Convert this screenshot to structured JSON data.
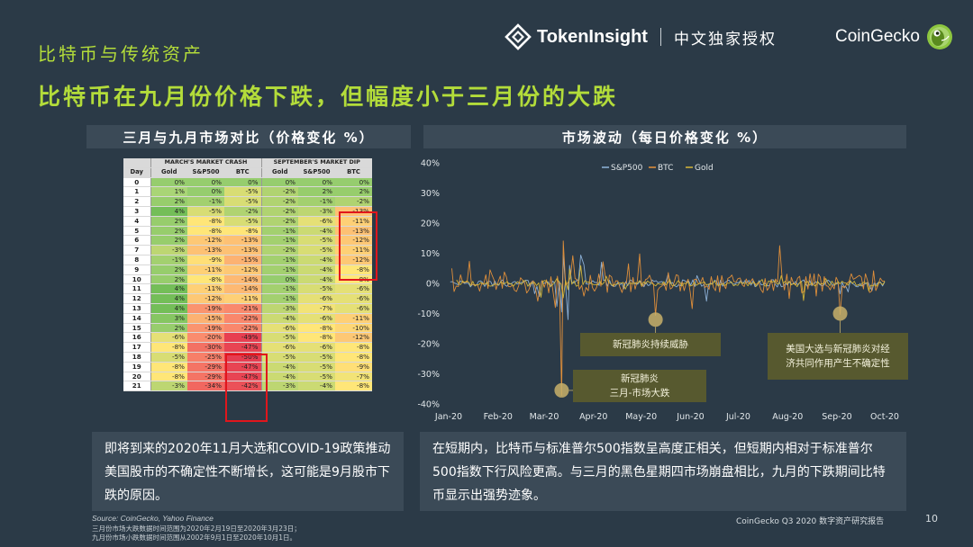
{
  "header": {
    "section_label": "比特币与传统资产",
    "headline": "比特币在九月份价格下跌，但幅度小于三月份的大跌",
    "tokeninsight_name": "TokenInsight",
    "tokeninsight_license": "中文独家授权",
    "coingecko_name": "CoinGecko"
  },
  "left_panel": {
    "title": "三月与九月市场对比（价格变化 %）",
    "group_march": "MARCH'S MARKET CRASH",
    "group_sept": "SEPTEMBER'S MARKET DIP",
    "columns": [
      "Day",
      "Gold",
      "S&P500",
      "BTC",
      "Gold",
      "S&P500",
      "BTC"
    ],
    "rows": [
      [
        "0",
        "0%",
        "0%",
        "0%",
        "0%",
        "0%",
        "0%"
      ],
      [
        "1",
        "1%",
        "0%",
        "-5%",
        "-2%",
        "2%",
        "2%"
      ],
      [
        "2",
        "2%",
        "-1%",
        "-5%",
        "-2%",
        "-1%",
        "-2%"
      ],
      [
        "3",
        "4%",
        "-5%",
        "-2%",
        "-2%",
        "-3%",
        "-13%"
      ],
      [
        "4",
        "2%",
        "-8%",
        "-5%",
        "-2%",
        "-6%",
        "-11%"
      ],
      [
        "5",
        "2%",
        "-8%",
        "-8%",
        "-1%",
        "-4%",
        "-13%"
      ],
      [
        "6",
        "2%",
        "-12%",
        "-13%",
        "-1%",
        "-5%",
        "-12%"
      ],
      [
        "7",
        "-3%",
        "-13%",
        "-13%",
        "-2%",
        "-5%",
        "-11%"
      ],
      [
        "8",
        "-1%",
        "-9%",
        "-15%",
        "-1%",
        "-4%",
        "-12%"
      ],
      [
        "9",
        "2%",
        "-11%",
        "-12%",
        "-1%",
        "-4%",
        "-8%"
      ],
      [
        "10",
        "2%",
        "-8%",
        "-14%",
        "0%",
        "-4%",
        "-8%"
      ],
      [
        "11",
        "4%",
        "-11%",
        "-14%",
        "-1%",
        "-5%",
        "-6%"
      ],
      [
        "12",
        "4%",
        "-12%",
        "-11%",
        "-1%",
        "-6%",
        "-6%"
      ],
      [
        "13",
        "4%",
        "-19%",
        "-21%",
        "-3%",
        "-7%",
        "-6%"
      ],
      [
        "14",
        "3%",
        "-15%",
        "-22%",
        "-4%",
        "-6%",
        "-11%"
      ],
      [
        "15",
        "2%",
        "-19%",
        "-22%",
        "-6%",
        "-8%",
        "-10%"
      ],
      [
        "16",
        "-6%",
        "-20%",
        "-49%",
        "-5%",
        "-8%",
        "-12%"
      ],
      [
        "17",
        "-8%",
        "-30%",
        "-47%",
        "-6%",
        "-6%",
        "-8%"
      ],
      [
        "18",
        "-5%",
        "-25%",
        "-50%",
        "-5%",
        "-5%",
        "-8%"
      ],
      [
        "19",
        "-8%",
        "-29%",
        "-47%",
        "-4%",
        "-5%",
        "-9%"
      ],
      [
        "20",
        "-8%",
        "-29%",
        "-47%",
        "-4%",
        "-5%",
        "-7%"
      ],
      [
        "21",
        "-3%",
        "-34%",
        "-42%",
        "-3%",
        "-4%",
        "-8%"
      ]
    ]
  },
  "right_panel": {
    "title": "市场波动（每日价格变化 %）"
  },
  "annotations": {
    "continuing": "新冠肺炎持续威胁",
    "crash_line1": "新冠肺炎",
    "crash_line2": "三月-市场大跌",
    "election_line1": "美国大选与新冠肺炎对经",
    "election_line2": "济共同作用产生不确定性"
  },
  "notes": {
    "left": "即将到来的2020年11月大选和COVID-19政策推动美国股市的不确定性不断增长，这可能是9月股市下跌的原因。",
    "right": "在短期内，比特币与标准普尔500指数呈高度正相关，但短期内相对于标准普尔500指数下行风险更高。与三月的黑色星期四市场崩盘相比，九月的下跌期间比特币显示出强势迹象。"
  },
  "footer": {
    "source": "Source: CoinGecko, Yahoo Finance",
    "line1": "三月份市场大跌数据时间范围为2020年2月19日至2020年3月23日；",
    "line2": "九月份市场小跌数据时间范围从2002年9月1日至2020年10月1日。",
    "report": "CoinGecko Q3 2020 数字资产研究报告",
    "page": "10"
  },
  "colors": {
    "background": "#2b3a47",
    "accent_green": "#b3dc3a",
    "highlight_red": "#e0161c",
    "annotation_bg": "#57592f",
    "sp500": "#8fb4dc",
    "btc": "#e8923a",
    "gold": "#d8b838"
  },
  "chart_data": {
    "type": "line",
    "legend": [
      "S&P500",
      "BTC",
      "Gold"
    ],
    "legend_position": "top-center",
    "x_ticks": [
      "Jan-20",
      "Feb-20",
      "Mar-20",
      "Apr-20",
      "May-20",
      "Jun-20",
      "Jul-20",
      "Aug-20",
      "Sep-20",
      "Oct-20"
    ],
    "y_ticks": [
      "40%",
      "30%",
      "20%",
      "10%",
      "0%",
      "-10%",
      "-20%",
      "-30%",
      "-40%"
    ],
    "ylim": [
      -40,
      40
    ],
    "grid": false,
    "series": [
      {
        "name": "S&P500",
        "color": "#8fb4dc",
        "x": [
          "2020-01-02",
          "2020-01-16",
          "2020-01-30",
          "2020-02-13",
          "2020-02-24",
          "2020-02-27",
          "2020-03-09",
          "2020-03-12",
          "2020-03-13",
          "2020-03-16",
          "2020-03-17",
          "2020-03-24",
          "2020-03-26",
          "2020-04-06",
          "2020-04-20",
          "2020-05-04",
          "2020-05-18",
          "2020-06-05",
          "2020-06-11",
          "2020-06-25",
          "2020-07-09",
          "2020-07-23",
          "2020-08-06",
          "2020-08-20",
          "2020-09-03",
          "2020-09-08",
          "2020-09-23",
          "2020-10-01"
        ],
        "values": [
          0.5,
          -0.3,
          0.8,
          -0.2,
          -3.4,
          -4.4,
          -7.6,
          -9.5,
          9.3,
          -12,
          6,
          9.4,
          6.2,
          7,
          -1.8,
          0.4,
          3.2,
          2.6,
          -5.9,
          1.1,
          -0.6,
          1.2,
          0.6,
          0.3,
          -3.5,
          -2.8,
          -2.4,
          0.5
        ]
      },
      {
        "name": "BTC",
        "color": "#e8923a",
        "x": [
          "2020-01-03",
          "2020-01-14",
          "2020-01-27",
          "2020-02-05",
          "2020-02-19",
          "2020-02-26",
          "2020-03-08",
          "2020-03-12",
          "2020-03-13",
          "2020-03-19",
          "2020-03-26",
          "2020-04-07",
          "2020-04-23",
          "2020-04-30",
          "2020-05-10",
          "2020-05-18",
          "2020-06-02",
          "2020-06-18",
          "2020-07-06",
          "2020-07-27",
          "2020-08-02",
          "2020-08-19",
          "2020-09-03",
          "2020-09-10",
          "2020-09-24",
          "2020-10-01"
        ],
        "values": [
          5,
          7.3,
          4.5,
          3.8,
          -3.2,
          -5.9,
          -8,
          -37.2,
          14.1,
          9.2,
          -4.2,
          7.2,
          6.5,
          9.8,
          -10.6,
          3.6,
          -8.4,
          2.5,
          1.5,
          12.5,
          -5,
          -4.2,
          -10.3,
          3.2,
          4.2,
          0.8
        ]
      },
      {
        "name": "Gold",
        "color": "#d8b838",
        "x": [
          "2020-01-06",
          "2020-01-20",
          "2020-02-03",
          "2020-02-17",
          "2020-02-28",
          "2020-03-09",
          "2020-03-13",
          "2020-03-16",
          "2020-03-17",
          "2020-03-24",
          "2020-04-09",
          "2020-04-21",
          "2020-05-05",
          "2020-05-19",
          "2020-06-02",
          "2020-06-16",
          "2020-07-02",
          "2020-07-16",
          "2020-07-28",
          "2020-08-07",
          "2020-08-11",
          "2020-08-25",
          "2020-09-08",
          "2020-09-21",
          "2020-10-01"
        ],
        "values": [
          1.2,
          -0.4,
          0.6,
          0.9,
          -4.6,
          1.6,
          -4.8,
          -2.1,
          4.8,
          5.9,
          2.4,
          -1.9,
          0.8,
          1.3,
          -0.7,
          0.9,
          0.4,
          1.3,
          2.6,
          -1.1,
          -5.7,
          1.6,
          -0.6,
          -2.5,
          0.7
        ]
      }
    ]
  }
}
